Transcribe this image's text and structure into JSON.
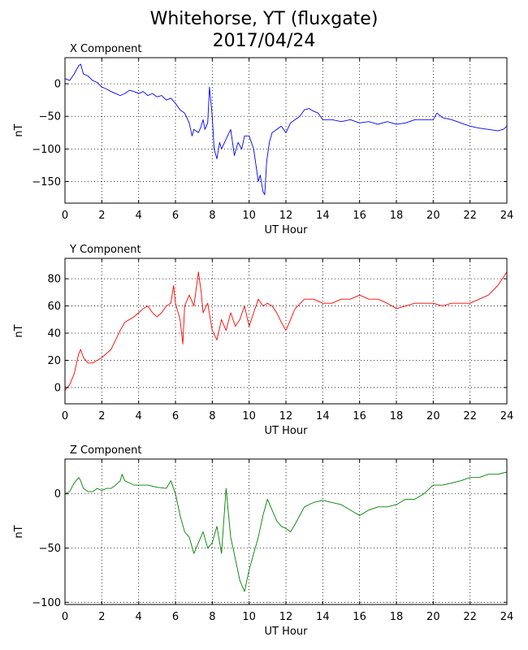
{
  "title": {
    "line1": "Whitehorse, YT (fluxgate)",
    "line2": "2017/04/24"
  },
  "chart_data": [
    {
      "type": "line",
      "title": "X Component",
      "xlabel": "UT Hour",
      "ylabel": "nT",
      "xlim": [
        0,
        24
      ],
      "ylim": [
        -183,
        40
      ],
      "xticks": [
        0,
        2,
        4,
        6,
        8,
        10,
        12,
        14,
        16,
        18,
        20,
        22,
        24
      ],
      "yticks": [
        0,
        -50,
        -100,
        -150
      ],
      "ytick_labels": [
        "0",
        "−50",
        "−100",
        "−150"
      ],
      "grid": true,
      "color": "#0000ff",
      "x": [
        0,
        0.25,
        0.5,
        0.75,
        0.85,
        1.0,
        1.25,
        1.5,
        1.75,
        2.0,
        2.25,
        2.5,
        2.75,
        3.0,
        3.25,
        3.5,
        3.75,
        4.0,
        4.25,
        4.5,
        4.75,
        5.0,
        5.25,
        5.5,
        5.75,
        6.0,
        6.25,
        6.5,
        6.75,
        6.9,
        7.0,
        7.25,
        7.4,
        7.5,
        7.6,
        7.75,
        7.85,
        8.0,
        8.1,
        8.25,
        8.4,
        8.5,
        8.75,
        9.0,
        9.2,
        9.4,
        9.6,
        9.75,
        10.0,
        10.25,
        10.4,
        10.5,
        10.6,
        10.75,
        10.85,
        10.95,
        11.1,
        11.25,
        11.5,
        11.75,
        12.0,
        12.25,
        12.5,
        12.75,
        13.0,
        13.25,
        13.5,
        13.75,
        14.0,
        14.5,
        15.0,
        15.5,
        16.0,
        16.5,
        17.0,
        17.5,
        18.0,
        18.5,
        19.0,
        19.5,
        20.0,
        20.2,
        20.5,
        21.0,
        21.5,
        22.0,
        22.5,
        23.0,
        23.5,
        23.8,
        24.0
      ],
      "y": [
        8,
        5,
        15,
        28,
        30,
        15,
        12,
        5,
        2,
        -5,
        -8,
        -12,
        -15,
        -18,
        -15,
        -10,
        -12,
        -15,
        -12,
        -18,
        -15,
        -20,
        -18,
        -25,
        -22,
        -30,
        -40,
        -45,
        -60,
        -80,
        -70,
        -75,
        -65,
        -55,
        -70,
        -60,
        -5,
        -50,
        -100,
        -115,
        -90,
        -100,
        -85,
        -70,
        -110,
        -90,
        -100,
        -80,
        -80,
        -100,
        -130,
        -150,
        -140,
        -165,
        -170,
        -120,
        -90,
        -75,
        -70,
        -65,
        -75,
        -60,
        -55,
        -50,
        -40,
        -38,
        -42,
        -45,
        -55,
        -55,
        -58,
        -55,
        -60,
        -58,
        -62,
        -58,
        -62,
        -60,
        -55,
        -55,
        -55,
        -45,
        -52,
        -55,
        -60,
        -65,
        -68,
        -70,
        -72,
        -70,
        -65
      ]
    },
    {
      "type": "line",
      "title": "Y Component",
      "xlabel": "UT Hour",
      "ylabel": "nT",
      "xlim": [
        0,
        24
      ],
      "ylim": [
        -12,
        95
      ],
      "xticks": [
        0,
        2,
        4,
        6,
        8,
        10,
        12,
        14,
        16,
        18,
        20,
        22,
        24
      ],
      "yticks": [
        80,
        60,
        40,
        20,
        0
      ],
      "ytick_labels": [
        "80",
        "60",
        "40",
        "20",
        "0"
      ],
      "grid": true,
      "color": "#ff0000",
      "x": [
        0,
        0.25,
        0.5,
        0.75,
        0.85,
        1.0,
        1.25,
        1.5,
        1.75,
        2.0,
        2.25,
        2.5,
        2.75,
        3.0,
        3.25,
        3.5,
        3.75,
        4.0,
        4.25,
        4.5,
        4.75,
        5.0,
        5.25,
        5.5,
        5.75,
        5.9,
        6.0,
        6.25,
        6.4,
        6.5,
        6.75,
        7.0,
        7.25,
        7.4,
        7.5,
        7.75,
        8.0,
        8.25,
        8.5,
        8.75,
        9.0,
        9.25,
        9.5,
        9.75,
        10.0,
        10.25,
        10.5,
        10.75,
        11.0,
        11.25,
        11.5,
        11.75,
        12.0,
        12.25,
        12.5,
        13.0,
        13.5,
        14.0,
        14.5,
        15.0,
        15.5,
        16.0,
        16.5,
        17.0,
        17.5,
        18.0,
        18.5,
        19.0,
        19.5,
        20.0,
        20.5,
        21.0,
        21.5,
        22.0,
        22.5,
        23.0,
        23.5,
        24.0
      ],
      "y": [
        -2,
        2,
        10,
        25,
        28,
        22,
        18,
        18,
        20,
        22,
        25,
        28,
        35,
        42,
        48,
        50,
        52,
        55,
        58,
        60,
        55,
        52,
        55,
        60,
        62,
        75,
        62,
        50,
        32,
        60,
        68,
        60,
        85,
        70,
        55,
        62,
        42,
        35,
        50,
        42,
        55,
        45,
        50,
        60,
        45,
        55,
        65,
        60,
        62,
        60,
        55,
        48,
        42,
        50,
        58,
        65,
        65,
        62,
        62,
        65,
        65,
        68,
        65,
        65,
        62,
        58,
        60,
        62,
        62,
        62,
        60,
        62,
        62,
        62,
        65,
        68,
        75,
        85
      ]
    },
    {
      "type": "line",
      "title": "Z Component",
      "xlabel": "UT Hour",
      "ylabel": "nT",
      "xlim": [
        0,
        24
      ],
      "ylim": [
        -102,
        32
      ],
      "xticks": [
        0,
        2,
        4,
        6,
        8,
        10,
        12,
        14,
        16,
        18,
        20,
        22,
        24
      ],
      "yticks": [
        0,
        -50,
        -100
      ],
      "ytick_labels": [
        "0",
        "−50",
        "−100"
      ],
      "grid": true,
      "color": "#008000",
      "x": [
        0,
        0.25,
        0.5,
        0.75,
        0.85,
        1.0,
        1.25,
        1.5,
        1.75,
        2.0,
        2.25,
        2.5,
        2.75,
        3.0,
        3.1,
        3.25,
        3.5,
        3.75,
        4.0,
        4.5,
        5.0,
        5.5,
        5.75,
        6.0,
        6.25,
        6.5,
        6.75,
        7.0,
        7.25,
        7.5,
        7.75,
        8.0,
        8.25,
        8.5,
        8.75,
        9.0,
        9.25,
        9.5,
        9.75,
        10.0,
        10.25,
        10.5,
        10.75,
        11.0,
        11.25,
        11.5,
        11.75,
        12.0,
        12.25,
        12.5,
        12.75,
        13.0,
        13.5,
        14.0,
        14.5,
        15.0,
        15.5,
        16.0,
        16.5,
        17.0,
        17.5,
        18.0,
        18.5,
        19.0,
        19.5,
        20.0,
        20.5,
        21.0,
        21.5,
        22.0,
        22.5,
        23.0,
        23.5,
        24.0
      ],
      "y": [
        0,
        2,
        10,
        15,
        12,
        5,
        2,
        2,
        5,
        3,
        5,
        5,
        8,
        12,
        18,
        12,
        10,
        8,
        8,
        8,
        6,
        5,
        12,
        0,
        -20,
        -35,
        -40,
        -55,
        -45,
        -35,
        -50,
        -45,
        -30,
        -55,
        5,
        -40,
        -60,
        -80,
        -90,
        -70,
        -55,
        -40,
        -20,
        -5,
        -15,
        -25,
        -30,
        -32,
        -35,
        -28,
        -20,
        -12,
        -8,
        -6,
        -8,
        -10,
        -15,
        -20,
        -15,
        -12,
        -12,
        -10,
        -5,
        -5,
        0,
        8,
        8,
        10,
        12,
        15,
        15,
        18,
        18,
        20
      ]
    }
  ]
}
